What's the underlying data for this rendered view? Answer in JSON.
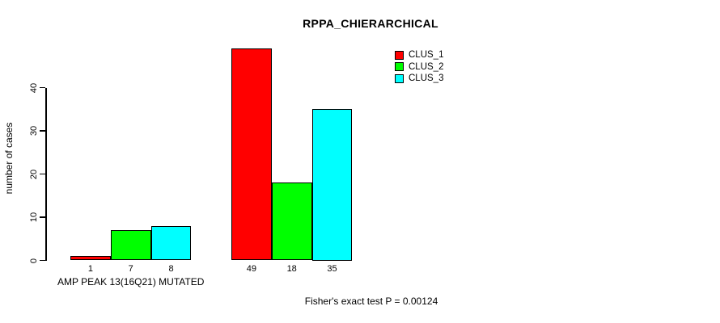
{
  "chart_data": {
    "type": "bar",
    "title": "RPPA_CHIERARCHICAL",
    "ylabel": "number of cases",
    "xlabel": "",
    "ylim": [
      0,
      40
    ],
    "yticks": [
      0,
      10,
      20,
      30,
      40
    ],
    "grid": false,
    "legend_position": "top-right",
    "series": [
      {
        "name": "CLUS_1",
        "color": "#ff0000"
      },
      {
        "name": "CLUS_2",
        "color": "#00ff00"
      },
      {
        "name": "CLUS_3",
        "color": "#00ffff"
      }
    ],
    "groups": [
      {
        "label": "AMP PEAK 13(16Q21) MUTATED",
        "values": [
          1,
          7,
          8
        ]
      },
      {
        "label": "",
        "values": [
          49,
          18,
          35
        ]
      }
    ],
    "bar_value_labels": [
      [
        "1",
        "7",
        "8"
      ],
      [
        "49",
        "18",
        "35"
      ]
    ],
    "annotation": "Fisher's exact test P = 0.00124"
  }
}
